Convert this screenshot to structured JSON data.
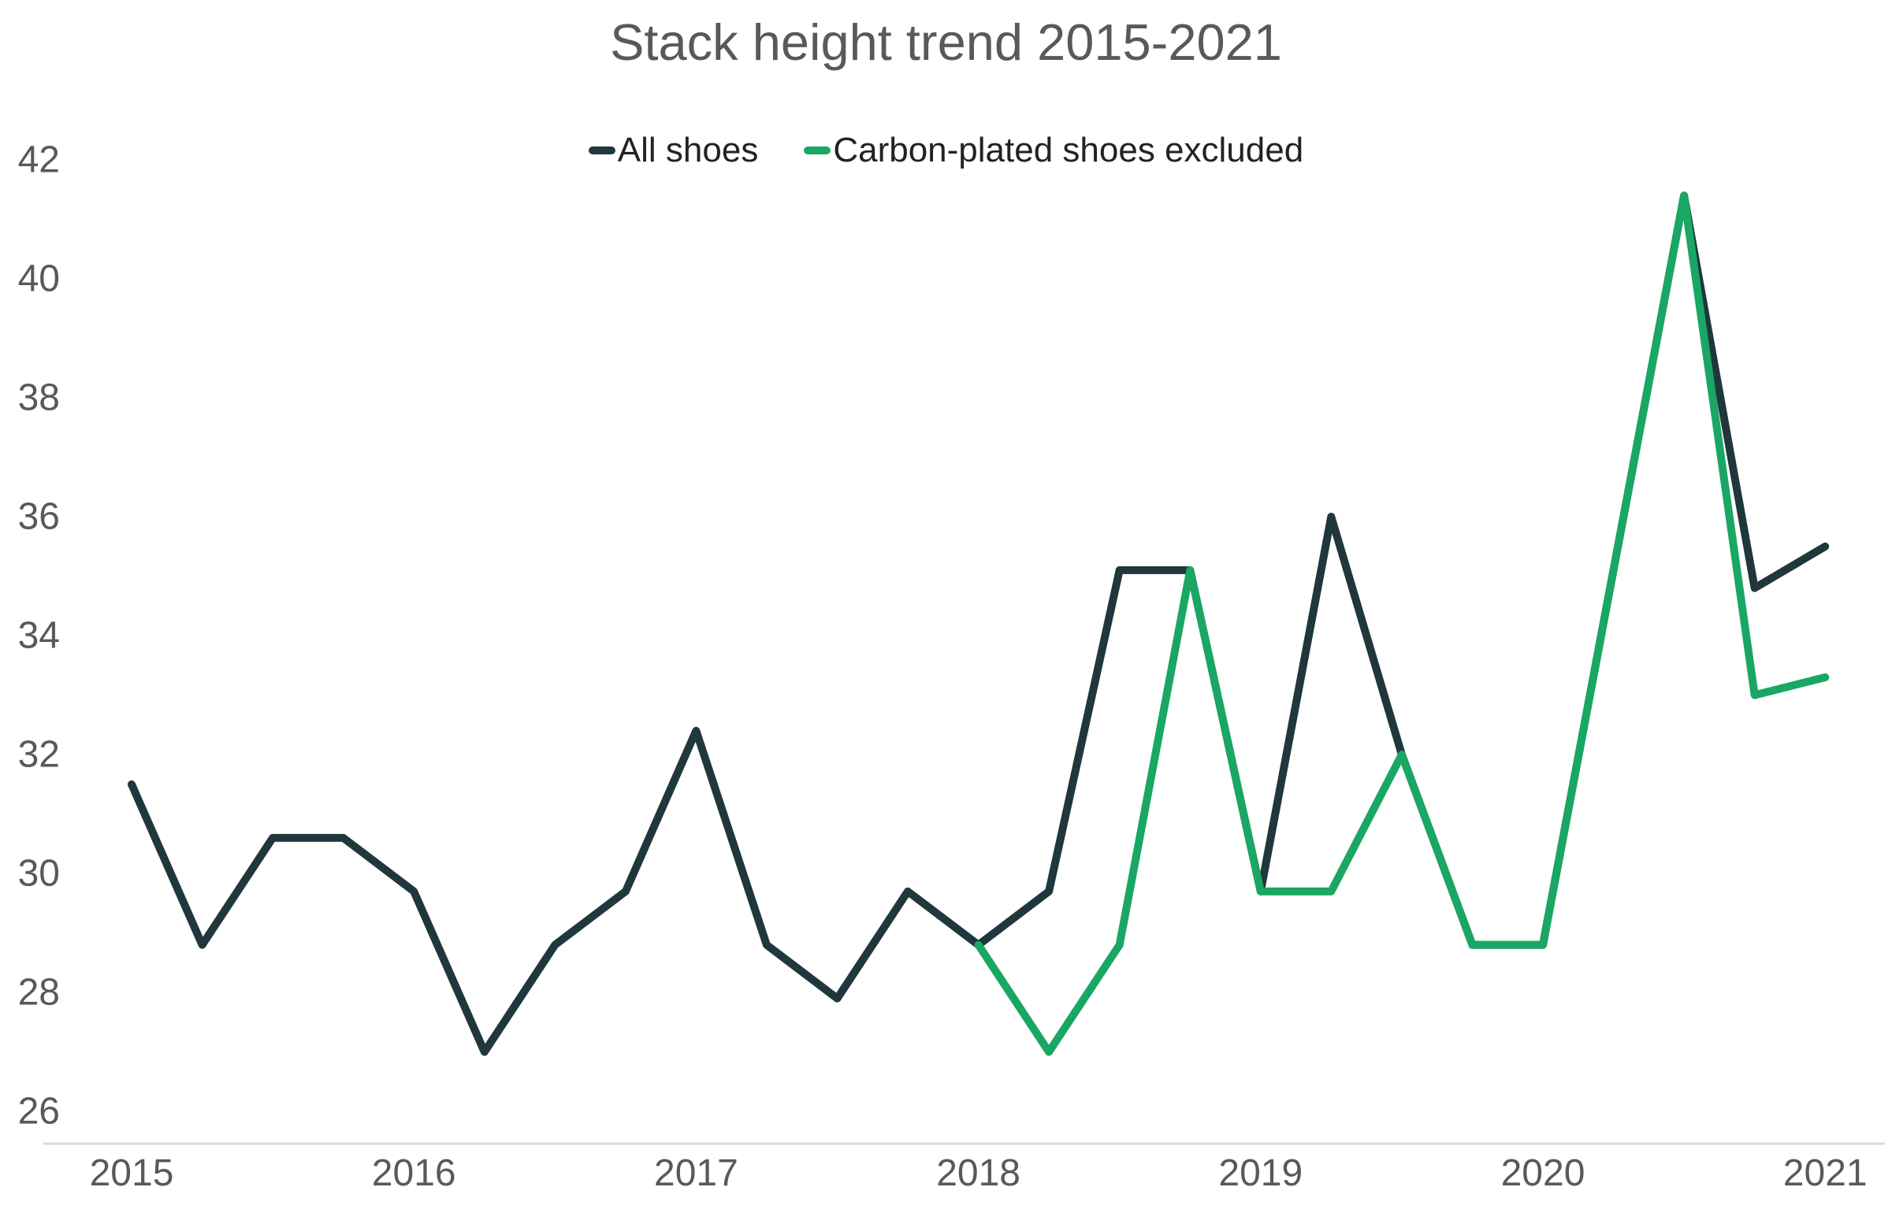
{
  "title": "Stack height trend 2015-2021",
  "legend": {
    "items": [
      {
        "label": "All shoes",
        "color": "#1f373d"
      },
      {
        "label": "Carbon-plated shoes excluded",
        "color": "#19a763"
      }
    ]
  },
  "chart_data": {
    "type": "line",
    "title": "Stack height trend 2015-2021",
    "xlabel": "",
    "ylabel": "",
    "x_frequency": "quarterly",
    "ylim": [
      26,
      42
    ],
    "yticks": [
      26,
      28,
      30,
      32,
      34,
      36,
      38,
      40,
      42
    ],
    "xticks": [
      2015,
      2016,
      2017,
      2018,
      2019,
      2020,
      2021
    ],
    "grid": false,
    "legend_position": "top",
    "series": [
      {
        "name": "All shoes",
        "color": "#1f373d",
        "start_year": 2015,
        "start_quarter": 1,
        "values": [
          31.5,
          28.8,
          30.6,
          30.6,
          29.7,
          27.0,
          28.8,
          29.7,
          32.4,
          28.8,
          27.9,
          29.7,
          28.8,
          29.7,
          35.1,
          35.1,
          29.7,
          36.0,
          32.0,
          28.8,
          28.8,
          35.1,
          41.4,
          34.8,
          35.5
        ]
      },
      {
        "name": "Carbon-plated shoes excluded",
        "color": "#19a763",
        "start_year": 2018,
        "start_quarter": 1,
        "values": [
          28.8,
          27.0,
          28.8,
          35.1,
          29.7,
          29.7,
          32.0,
          28.8,
          28.8,
          35.1,
          41.4,
          33.0,
          33.3
        ]
      }
    ]
  },
  "colors": {
    "background": "#ffffff",
    "title_text": "#595959",
    "tick_text": "#595959",
    "legend_text": "#222222",
    "axis_line": "#d9d9d9"
  }
}
